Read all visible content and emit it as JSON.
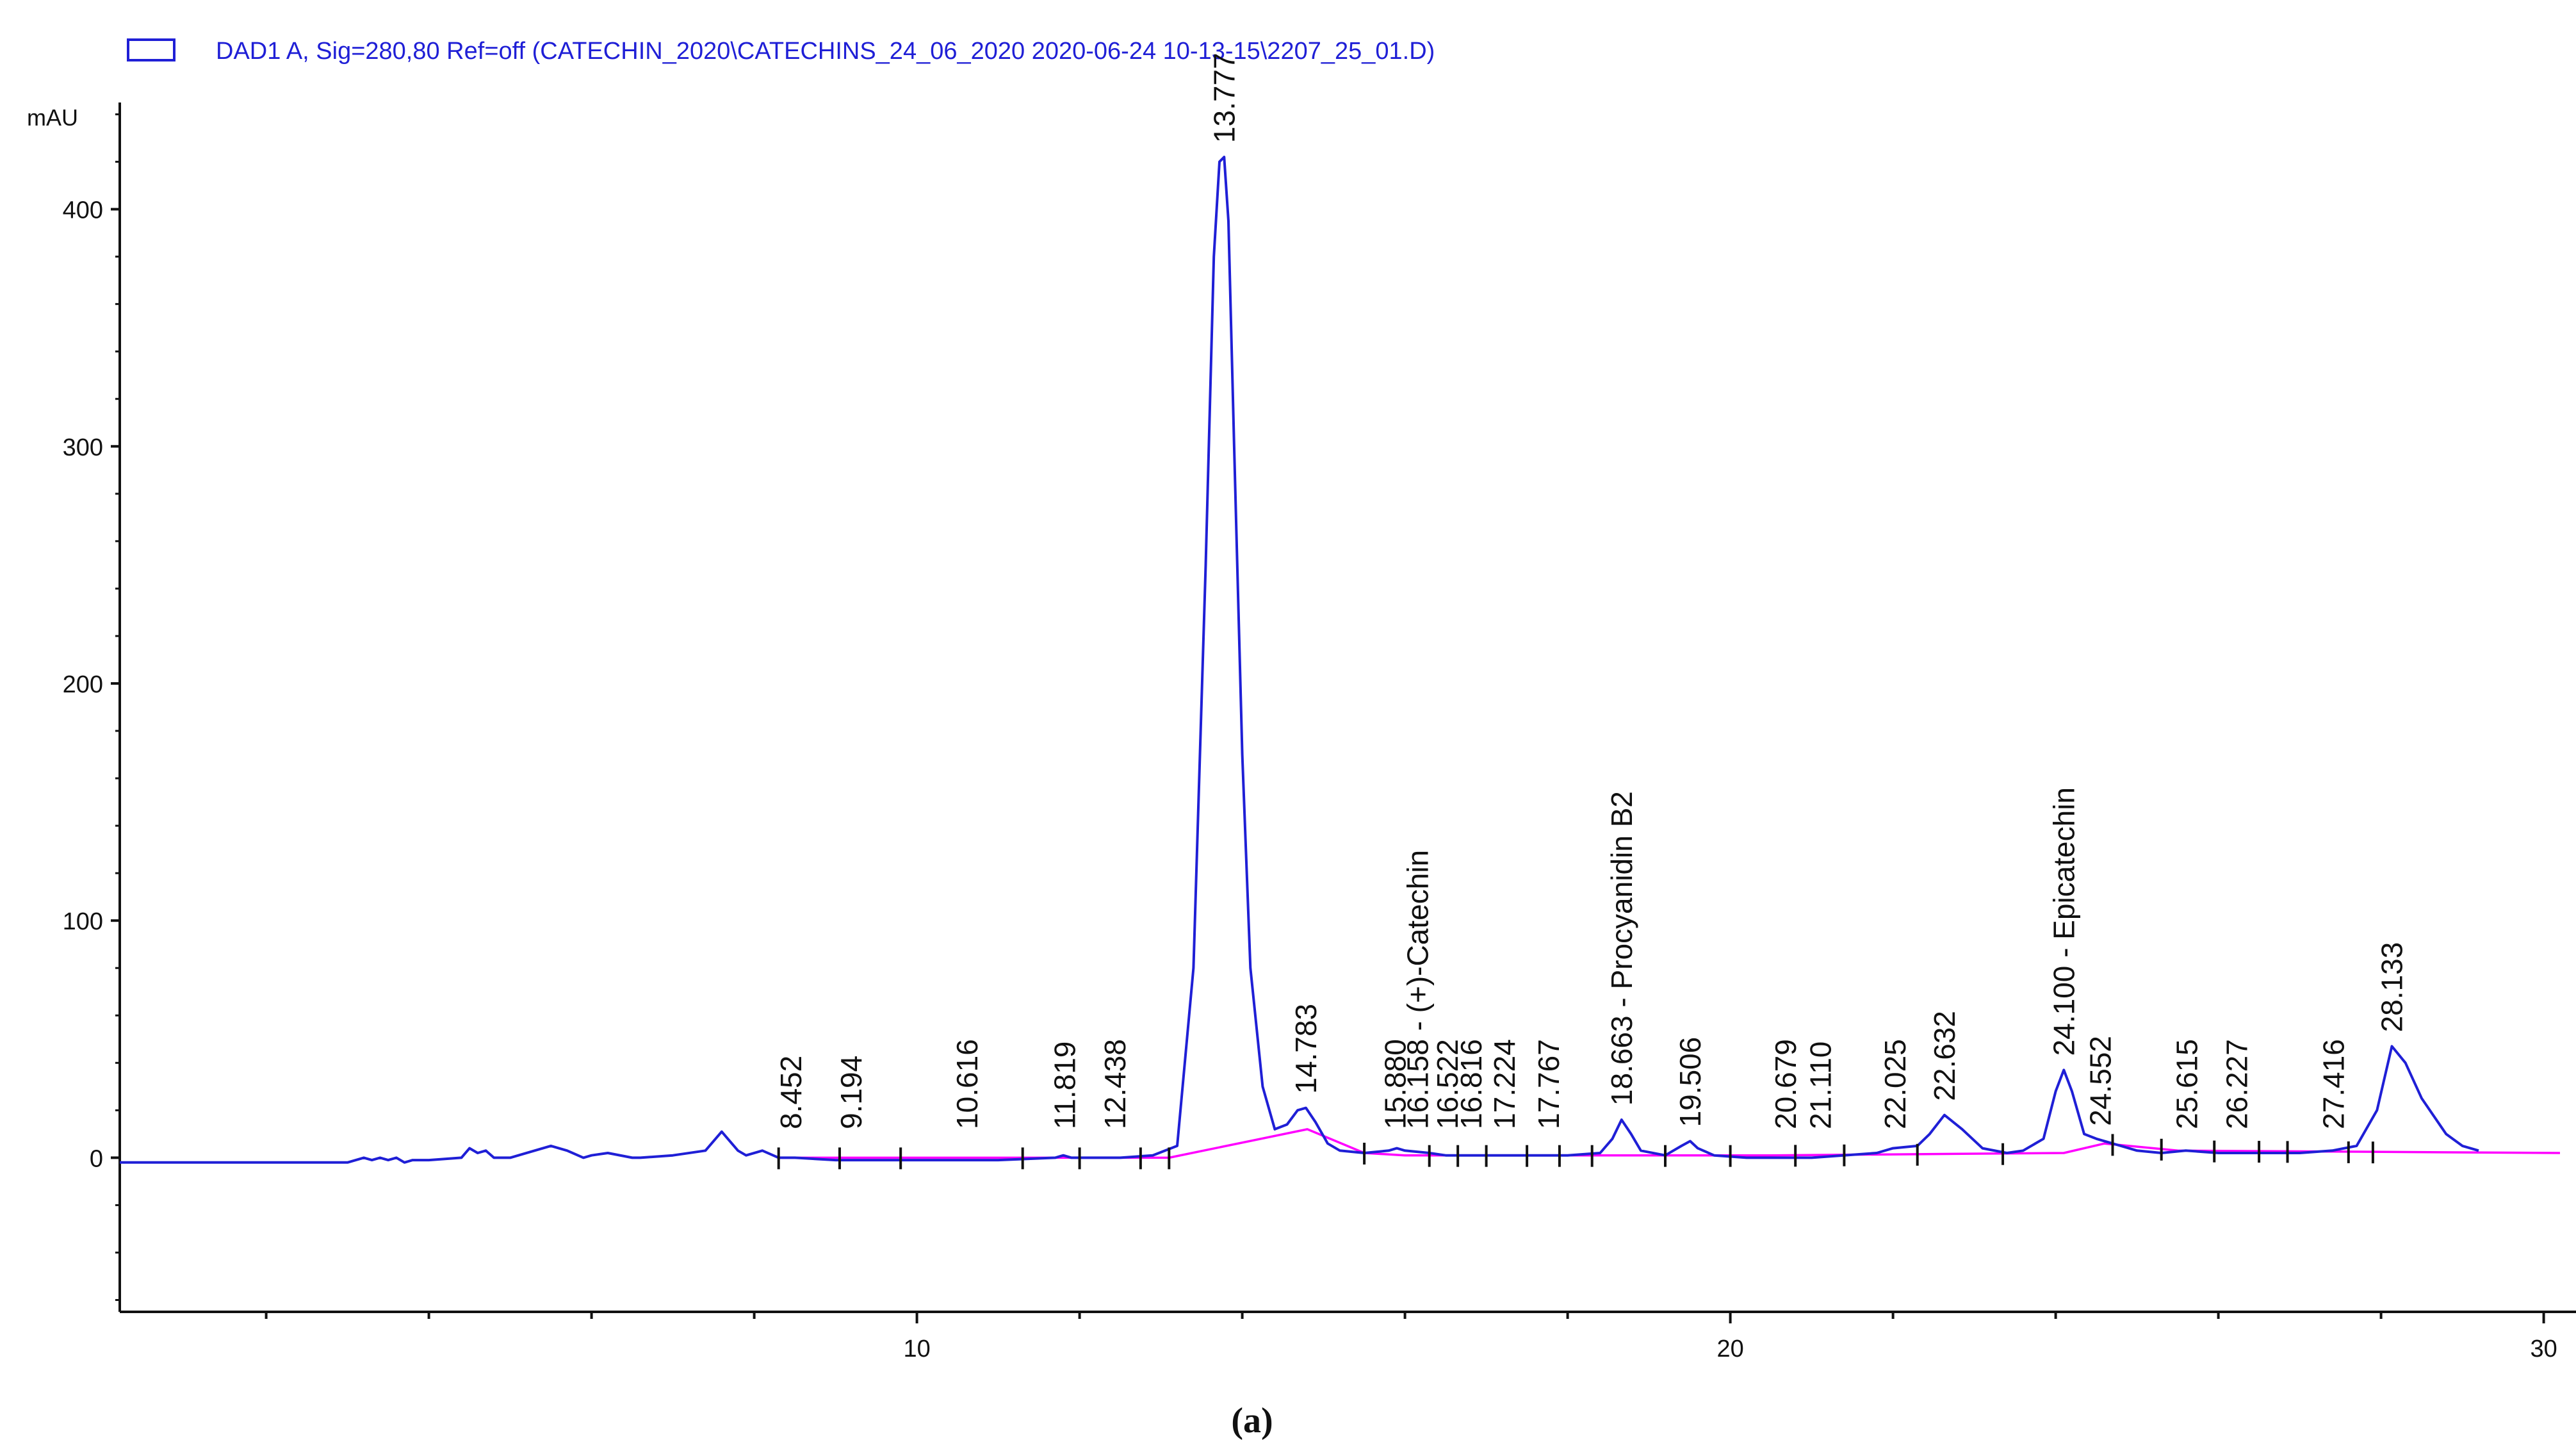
{
  "chart_data": {
    "type": "line",
    "legend": {
      "label": "DAD1 A, Sig=280,80 Ref=off (CATECHIN_2020\\CATECHINS_24_06_2020 2020-06-24 10-13-15\\2207_25_01.D)",
      "color": "#1f1fd6",
      "placement": "top-left"
    },
    "ylabel": "mAU",
    "xlim": [
      0.2,
      30.2
    ],
    "ylim": [
      -65,
      445
    ],
    "x_ticks": [
      10,
      20,
      30
    ],
    "y_ticks": [
      0,
      100,
      200,
      300,
      400
    ],
    "x_minor_step": 2,
    "caption": "(a)",
    "series": [
      {
        "role": "signal",
        "color": "#1f1fd6",
        "x": [
          0.2,
          2.0,
          3.0,
          3.2,
          3.3,
          3.4,
          3.5,
          3.6,
          3.7,
          3.8,
          4.0,
          4.4,
          4.5,
          4.6,
          4.7,
          4.8,
          5.0,
          5.3,
          5.5,
          5.7,
          5.9,
          6.0,
          6.2,
          6.5,
          6.6,
          7.0,
          7.4,
          7.6,
          7.8,
          7.9,
          8.1,
          8.3,
          8.5,
          9.0,
          10.0,
          11.0,
          11.7,
          11.8,
          11.9,
          12.5,
          12.9,
          13.2,
          13.4,
          13.55,
          13.65,
          13.72,
          13.777,
          13.83,
          13.9,
          14.0,
          14.1,
          14.25,
          14.4,
          14.55,
          14.68,
          14.783,
          14.9,
          15.05,
          15.2,
          15.5,
          15.8,
          15.9,
          16.0,
          16.3,
          16.5,
          17.0,
          17.5,
          18.0,
          18.4,
          18.55,
          18.663,
          18.78,
          18.9,
          19.2,
          19.4,
          19.506,
          19.6,
          19.8,
          20.2,
          21.0,
          21.8,
          22.0,
          22.3,
          22.45,
          22.632,
          22.85,
          23.1,
          23.4,
          23.6,
          23.85,
          24.0,
          24.1,
          24.2,
          24.35,
          24.5,
          24.7,
          25.0,
          25.3,
          25.6,
          26.0,
          26.5,
          27.0,
          27.4,
          27.7,
          27.95,
          28.133,
          28.3,
          28.5,
          28.8,
          29.0,
          29.2
        ],
        "y": [
          -2,
          -2,
          -2,
          0,
          -1,
          0,
          -1,
          0,
          -2,
          -1,
          -1,
          0,
          4,
          2,
          3,
          0,
          0,
          3,
          5,
          3,
          0,
          1,
          2,
          0,
          0,
          1,
          3,
          11,
          3,
          1,
          3,
          0,
          0,
          -1,
          -1,
          -1,
          0,
          1,
          0,
          0,
          1,
          5,
          80,
          250,
          380,
          420,
          422,
          395,
          300,
          170,
          80,
          30,
          12,
          14,
          20,
          21,
          15,
          6,
          3,
          2,
          3,
          4,
          3,
          2,
          1,
          1,
          1,
          1,
          2,
          8,
          16,
          10,
          3,
          1,
          5,
          7,
          4,
          1,
          0,
          0,
          2,
          4,
          5,
          10,
          18,
          12,
          4,
          2,
          3,
          8,
          28,
          37,
          28,
          10,
          8,
          6,
          3,
          2,
          3,
          2,
          2,
          2,
          3,
          5,
          20,
          47,
          40,
          25,
          10,
          5,
          3
        ]
      },
      {
        "role": "baseline",
        "color": "#ff00ff",
        "x": [
          8.3,
          9.8,
          13.1,
          14.8,
          15.5,
          16.0,
          20.5,
          24.1,
          24.6,
          25.5,
          30.2
        ],
        "y": [
          0,
          0,
          0,
          12,
          2,
          1,
          1,
          2,
          6,
          3,
          2
        ]
      }
    ],
    "peaks": [
      {
        "x": 8.452,
        "text": "8.452"
      },
      {
        "x": 9.194,
        "text": "9.194"
      },
      {
        "x": 10.616,
        "text": "10.616"
      },
      {
        "x": 11.819,
        "text": "11.819"
      },
      {
        "x": 12.438,
        "text": "12.438"
      },
      {
        "x": 13.777,
        "text": "13.777"
      },
      {
        "x": 14.783,
        "text": "14.783"
      },
      {
        "x": 15.88,
        "text": "15.880"
      },
      {
        "x": 16.158,
        "text": "16.158 - (+)-Catechin"
      },
      {
        "x": 16.522,
        "text": "16.522"
      },
      {
        "x": 16.816,
        "text": "16.816"
      },
      {
        "x": 17.224,
        "text": "17.224"
      },
      {
        "x": 17.767,
        "text": "17.767"
      },
      {
        "x": 18.663,
        "text": "18.663 - Procyanidin B2"
      },
      {
        "x": 19.506,
        "text": "19.506"
      },
      {
        "x": 20.679,
        "text": "20.679"
      },
      {
        "x": 21.11,
        "text": "21.110"
      },
      {
        "x": 22.025,
        "text": "22.025"
      },
      {
        "x": 22.632,
        "text": "22.632"
      },
      {
        "x": 24.1,
        "text": "24.100 - Epicatechin"
      },
      {
        "x": 24.552,
        "text": "24.552"
      },
      {
        "x": 25.615,
        "text": "25.615"
      },
      {
        "x": 26.227,
        "text": "26.227"
      },
      {
        "x": 27.416,
        "text": "27.416"
      },
      {
        "x": 28.133,
        "text": "28.133"
      }
    ],
    "integration_marks": [
      8.3,
      9.05,
      9.8,
      11.3,
      12.0,
      12.75,
      13.1,
      15.5,
      16.3,
      16.65,
      17.0,
      17.5,
      17.9,
      18.3,
      19.2,
      20.0,
      20.8,
      21.4,
      22.3,
      23.35,
      24.7,
      25.3,
      25.95,
      26.5,
      26.85,
      27.6,
      27.9
    ]
  }
}
